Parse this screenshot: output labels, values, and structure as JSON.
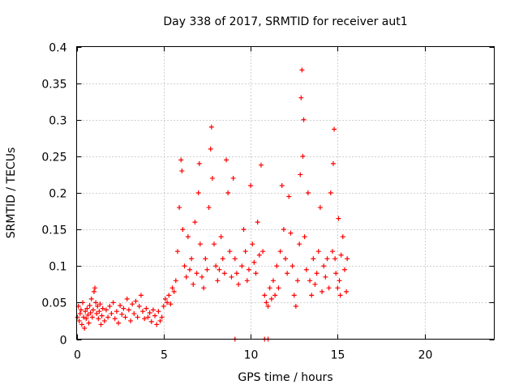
{
  "chart_data": {
    "type": "scatter",
    "title": "Day 338 of 2017, SRMTID for receiver aut1",
    "xlabel": "GPS time / hours",
    "ylabel": "SRMTID / TECUs",
    "xlim": [
      0,
      24
    ],
    "ylim": [
      0,
      0.4
    ],
    "xticks": [
      0,
      5,
      10,
      15,
      20
    ],
    "xtick_labels": [
      "0",
      "5",
      "10",
      "15",
      "20"
    ],
    "yticks": [
      0,
      0.05,
      0.1,
      0.15,
      0.2,
      0.25,
      0.3,
      0.35,
      0.4
    ],
    "ytick_labels": [
      "0",
      "0.05",
      "0.1",
      "0.15",
      "0.2",
      "0.25",
      "0.3",
      "0.35",
      "0.4"
    ],
    "grid": true,
    "legend": "none",
    "marker": "+",
    "marker_color": "#ff0000",
    "series": [
      {
        "name": "SRMTID",
        "points": [
          [
            0.05,
            0.03
          ],
          [
            0.1,
            0.045
          ],
          [
            0.15,
            0.025
          ],
          [
            0.2,
            0.035
          ],
          [
            0.25,
            0.04
          ],
          [
            0.3,
            0.02
          ],
          [
            0.35,
            0.05
          ],
          [
            0.4,
            0.03
          ],
          [
            0.45,
            0.015
          ],
          [
            0.5,
            0.038
          ],
          [
            0.55,
            0.028
          ],
          [
            0.6,
            0.042
          ],
          [
            0.65,
            0.033
          ],
          [
            0.7,
            0.022
          ],
          [
            0.75,
            0.046
          ],
          [
            0.8,
            0.036
          ],
          [
            0.85,
            0.055
          ],
          [
            0.9,
            0.03
          ],
          [
            0.95,
            0.04
          ],
          [
            1.0,
            0.065
          ],
          [
            1.05,
            0.07
          ],
          [
            1.1,
            0.05
          ],
          [
            1.15,
            0.035
          ],
          [
            1.2,
            0.045
          ],
          [
            1.25,
            0.028
          ],
          [
            1.3,
            0.038
          ],
          [
            1.35,
            0.048
          ],
          [
            1.4,
            0.02
          ],
          [
            1.45,
            0.032
          ],
          [
            1.5,
            0.042
          ],
          [
            1.6,
            0.025
          ],
          [
            1.7,
            0.04
          ],
          [
            1.8,
            0.03
          ],
          [
            1.9,
            0.045
          ],
          [
            2.0,
            0.035
          ],
          [
            2.1,
            0.05
          ],
          [
            2.2,
            0.028
          ],
          [
            2.3,
            0.038
          ],
          [
            2.4,
            0.022
          ],
          [
            2.5,
            0.046
          ],
          [
            2.6,
            0.034
          ],
          [
            2.7,
            0.042
          ],
          [
            2.8,
            0.03
          ],
          [
            2.9,
            0.055
          ],
          [
            3.0,
            0.04
          ],
          [
            3.1,
            0.025
          ],
          [
            3.2,
            0.048
          ],
          [
            3.3,
            0.035
          ],
          [
            3.4,
            0.052
          ],
          [
            3.5,
            0.03
          ],
          [
            3.6,
            0.045
          ],
          [
            3.7,
            0.06
          ],
          [
            3.8,
            0.038
          ],
          [
            3.9,
            0.028
          ],
          [
            4.0,
            0.042
          ],
          [
            4.1,
            0.03
          ],
          [
            4.2,
            0.036
          ],
          [
            4.3,
            0.024
          ],
          [
            4.4,
            0.04
          ],
          [
            4.5,
            0.032
          ],
          [
            4.6,
            0.02
          ],
          [
            4.7,
            0.038
          ],
          [
            4.8,
            0.025
          ],
          [
            4.9,
            0.03
          ],
          [
            5.0,
            0.045
          ],
          [
            5.1,
            0.055
          ],
          [
            5.2,
            0.05
          ],
          [
            5.3,
            0.06
          ],
          [
            5.4,
            0.048
          ],
          [
            5.5,
            0.07
          ],
          [
            5.6,
            0.065
          ],
          [
            5.7,
            0.08
          ],
          [
            5.8,
            0.12
          ],
          [
            5.9,
            0.18
          ],
          [
            6.0,
            0.245
          ],
          [
            6.05,
            0.23
          ],
          [
            6.1,
            0.15
          ],
          [
            6.2,
            0.1
          ],
          [
            6.3,
            0.085
          ],
          [
            6.4,
            0.14
          ],
          [
            6.5,
            0.095
          ],
          [
            6.6,
            0.11
          ],
          [
            6.7,
            0.075
          ],
          [
            6.8,
            0.16
          ],
          [
            6.9,
            0.09
          ],
          [
            7.0,
            0.2
          ],
          [
            7.05,
            0.24
          ],
          [
            7.1,
            0.13
          ],
          [
            7.2,
            0.085
          ],
          [
            7.3,
            0.07
          ],
          [
            7.4,
            0.11
          ],
          [
            7.5,
            0.095
          ],
          [
            7.6,
            0.18
          ],
          [
            7.7,
            0.26
          ],
          [
            7.75,
            0.29
          ],
          [
            7.8,
            0.22
          ],
          [
            7.9,
            0.13
          ],
          [
            8.0,
            0.1
          ],
          [
            8.1,
            0.08
          ],
          [
            8.2,
            0.095
          ],
          [
            8.3,
            0.14
          ],
          [
            8.4,
            0.11
          ],
          [
            8.5,
            0.09
          ],
          [
            8.6,
            0.245
          ],
          [
            8.7,
            0.2
          ],
          [
            8.8,
            0.12
          ],
          [
            8.9,
            0.085
          ],
          [
            9.0,
            0.22
          ],
          [
            9.1,
            0.11
          ],
          [
            9.2,
            0.09
          ],
          [
            9.3,
            0.075
          ],
          [
            9.5,
            0.1
          ],
          [
            9.6,
            0.15
          ],
          [
            9.7,
            0.12
          ],
          [
            9.8,
            0.08
          ],
          [
            9.9,
            0.095
          ],
          [
            10.0,
            0.21
          ],
          [
            10.1,
            0.13
          ],
          [
            10.2,
            0.105
          ],
          [
            10.3,
            0.09
          ],
          [
            10.4,
            0.16
          ],
          [
            10.5,
            0.115
          ],
          [
            10.6,
            0.238
          ],
          [
            10.7,
            0.12
          ],
          [
            10.8,
            0.06
          ],
          [
            10.9,
            0.05
          ],
          [
            11.0,
            0.045
          ],
          [
            11.1,
            0.07
          ],
          [
            11.2,
            0.055
          ],
          [
            11.3,
            0.08
          ],
          [
            11.4,
            0.06
          ],
          [
            11.5,
            0.1
          ],
          [
            11.6,
            0.07
          ],
          [
            11.7,
            0.12
          ],
          [
            11.8,
            0.21
          ],
          [
            11.9,
            0.15
          ],
          [
            12.0,
            0.11
          ],
          [
            12.1,
            0.09
          ],
          [
            12.2,
            0.195
          ],
          [
            12.3,
            0.145
          ],
          [
            12.4,
            0.1
          ],
          [
            12.5,
            0.06
          ],
          [
            12.6,
            0.045
          ],
          [
            12.7,
            0.08
          ],
          [
            12.8,
            0.13
          ],
          [
            12.85,
            0.225
          ],
          [
            12.9,
            0.33
          ],
          [
            12.95,
            0.368
          ],
          [
            13.0,
            0.25
          ],
          [
            13.05,
            0.3
          ],
          [
            13.1,
            0.14
          ],
          [
            13.2,
            0.095
          ],
          [
            13.3,
            0.2
          ],
          [
            13.4,
            0.08
          ],
          [
            13.5,
            0.06
          ],
          [
            13.6,
            0.11
          ],
          [
            13.7,
            0.075
          ],
          [
            13.8,
            0.09
          ],
          [
            13.9,
            0.12
          ],
          [
            14.0,
            0.18
          ],
          [
            14.1,
            0.065
          ],
          [
            14.2,
            0.1
          ],
          [
            14.3,
            0.085
          ],
          [
            14.4,
            0.11
          ],
          [
            14.5,
            0.07
          ],
          [
            14.6,
            0.2
          ],
          [
            14.7,
            0.12
          ],
          [
            14.75,
            0.24
          ],
          [
            14.8,
            0.287
          ],
          [
            14.85,
            0.11
          ],
          [
            14.9,
            0.09
          ],
          [
            15.0,
            0.07
          ],
          [
            15.05,
            0.165
          ],
          [
            15.1,
            0.08
          ],
          [
            15.15,
            0.06
          ],
          [
            15.2,
            0.115
          ],
          [
            15.3,
            0.14
          ],
          [
            15.4,
            0.095
          ],
          [
            15.5,
            0.065
          ],
          [
            15.55,
            0.11
          ],
          [
            9.1,
            0.0
          ],
          [
            10.8,
            0.0
          ],
          [
            11.0,
            0.0
          ]
        ]
      }
    ]
  }
}
